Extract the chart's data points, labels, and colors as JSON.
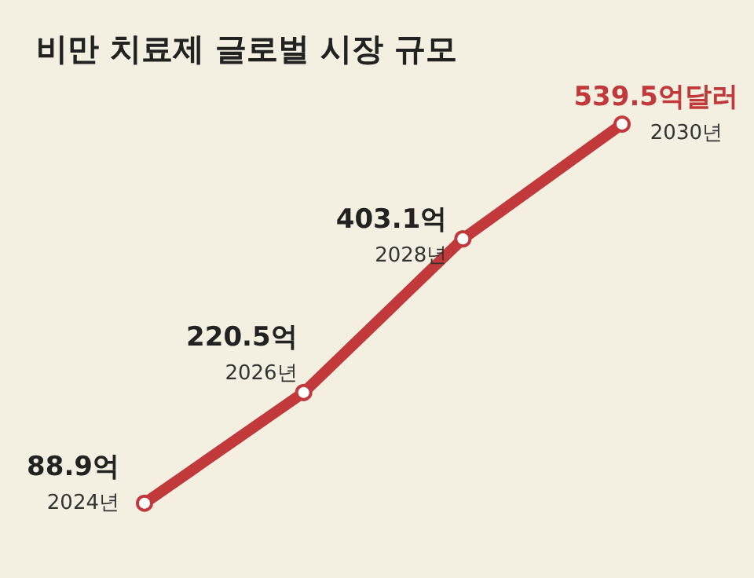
{
  "chart_data": {
    "type": "line",
    "title": "비만 치료제 글로벌 시장 규모",
    "categories": [
      "2024년",
      "2026년",
      "2028년",
      "2030년"
    ],
    "series": [
      {
        "color": "#c1393b",
        "values": [
          88.9,
          220.5,
          403.1,
          539.5
        ],
        "value_labels": [
          "88.9억",
          "220.5억",
          "403.1억",
          "539.5억달러"
        ]
      }
    ],
    "marker": "circle",
    "line_style": "solid",
    "tick_labels": false
  }
}
